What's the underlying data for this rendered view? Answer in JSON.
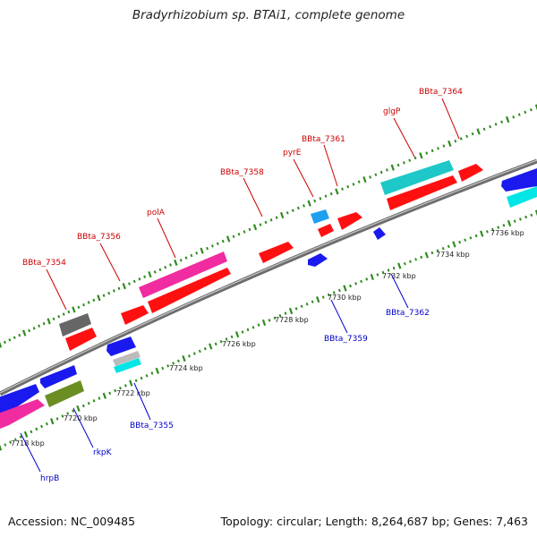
{
  "title": "Bradyrhizobium sp. BTAi1, complete genome",
  "footer": {
    "accession": "Accession: NC_009485",
    "summary": "Topology: circular; Length: 8,264,687 bp; Genes: 7,463"
  },
  "colors": {
    "backbone": "#7a7a7a",
    "tick": "#2e8b1e",
    "forward_label": "#cc0000",
    "reverse_label": "#0000cc"
  },
  "ruler_labels": [
    "7718 kbp",
    "7720 kbp",
    "7722 kbp",
    "7724 kbp",
    "7726 kbp",
    "7728 kbp",
    "7730 kbp",
    "7732 kbp",
    "7734 kbp",
    "7736 kbp"
  ],
  "forward_gene_labels": [
    "BBta_7354",
    "BBta_7356",
    "polA",
    "BBta_7358",
    "pyrE",
    "BBta_7361",
    "glgP",
    "BBta_7364"
  ],
  "reverse_gene_labels": [
    "hrpB",
    "rkpK",
    "BBta_7355",
    "BBta_7359",
    "BBta_7362"
  ]
}
